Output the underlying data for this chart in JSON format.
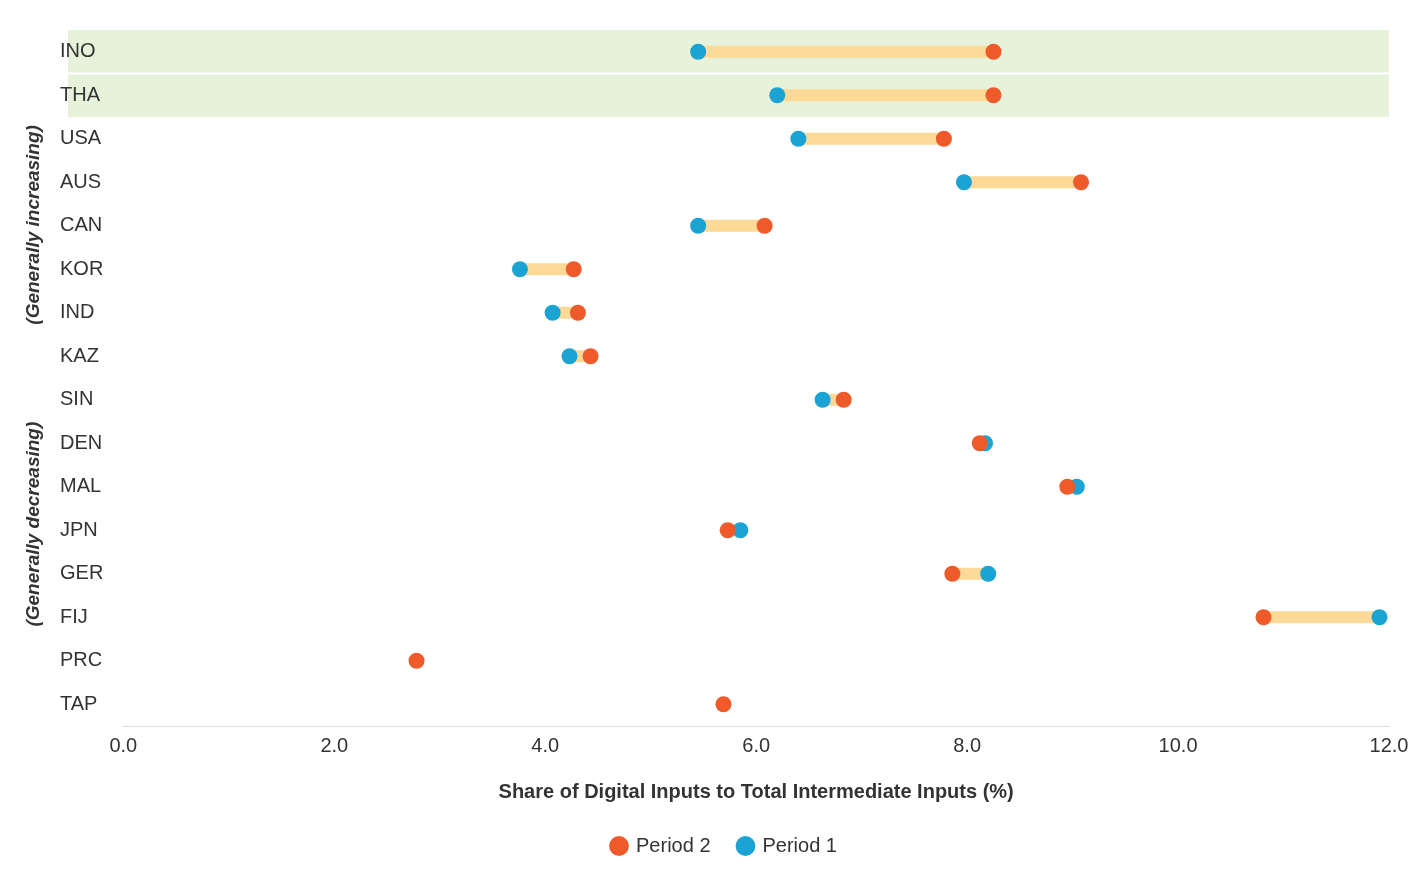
{
  "chart_data": {
    "type": "scatter",
    "orientation": "horizontal",
    "xlabel": "Share of Digital Inputs to Total Intermediate Inputs (%)",
    "categories": [
      "INO",
      "THA",
      "USA",
      "AUS",
      "CAN",
      "KOR",
      "IND",
      "KAZ",
      "SIN",
      "DEN",
      "MAL",
      "JPN",
      "GER",
      "FIJ",
      "PRC",
      "TAP"
    ],
    "series": [
      {
        "type": "scatter",
        "name": "Period 1",
        "color": "#1ba3d3",
        "values": [
          5.45,
          6.2,
          6.4,
          7.97,
          5.45,
          3.76,
          4.07,
          4.23,
          6.63,
          8.17,
          9.04,
          5.85,
          8.2,
          11.91,
          null,
          null
        ]
      },
      {
        "type": "scatter",
        "name": "Period 2",
        "color": "#ee5a2a",
        "values": [
          8.25,
          8.25,
          7.78,
          9.08,
          6.08,
          4.27,
          4.31,
          4.43,
          6.83,
          8.12,
          8.95,
          5.73,
          7.86,
          10.81,
          2.78,
          5.69
        ]
      }
    ],
    "xlim": [
      0,
      12
    ],
    "xticks": [
      {
        "value": 0,
        "label": "0.0"
      },
      {
        "value": 2,
        "label": "2.0"
      },
      {
        "value": 4,
        "label": "4.0"
      },
      {
        "value": 6,
        "label": "6.0"
      },
      {
        "value": 8,
        "label": "8.0"
      },
      {
        "value": 10,
        "label": "10.0"
      },
      {
        "value": 12,
        "label": "12.0"
      }
    ],
    "bands": [
      {
        "axis": "y",
        "from": "INO",
        "to": "THA",
        "color": "#e6f3da"
      }
    ],
    "annotations": [
      "(Generally increasing)",
      "(Generally decreasing)"
    ],
    "marker": "circle",
    "legend": "bottom",
    "grid": false
  }
}
